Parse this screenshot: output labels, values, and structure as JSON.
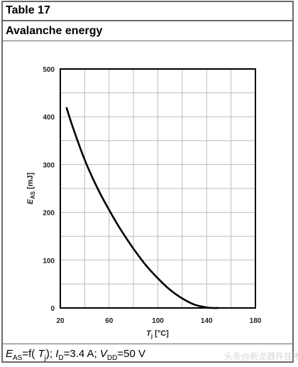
{
  "table_label": "Table 17",
  "title": "Avalanche energy",
  "caption": {
    "e_main": "E",
    "e_sub": "AS",
    "eq": "=f( ",
    "tj_main": "T",
    "tj_sub": "j",
    "mid": "); ",
    "id_main": "I",
    "id_sub": "D",
    "id_val": "=3.4 A; ",
    "vdd_main": "V",
    "vdd_sub": "DD",
    "vdd_val": "=50 V"
  },
  "watermark": "头条@新龙器件技术",
  "chart_data": {
    "type": "line",
    "xlabel": "T_j [°C]",
    "ylabel": "E_AS [mJ]",
    "xlim": [
      20,
      180
    ],
    "ylim": [
      0,
      500
    ],
    "xticks": [
      20,
      60,
      100,
      140,
      180
    ],
    "yticks": [
      0,
      100,
      200,
      300,
      400,
      500
    ],
    "grid": true,
    "series": [
      {
        "x": [
          25,
          30,
          40,
          50,
          60,
          70,
          80,
          90,
          100,
          110,
          120,
          130,
          140,
          145,
          150
        ],
        "y": [
          420,
          380,
          310,
          253,
          205,
          162,
          124,
          90,
          62,
          38,
          20,
          7,
          1,
          0,
          0
        ]
      }
    ]
  }
}
